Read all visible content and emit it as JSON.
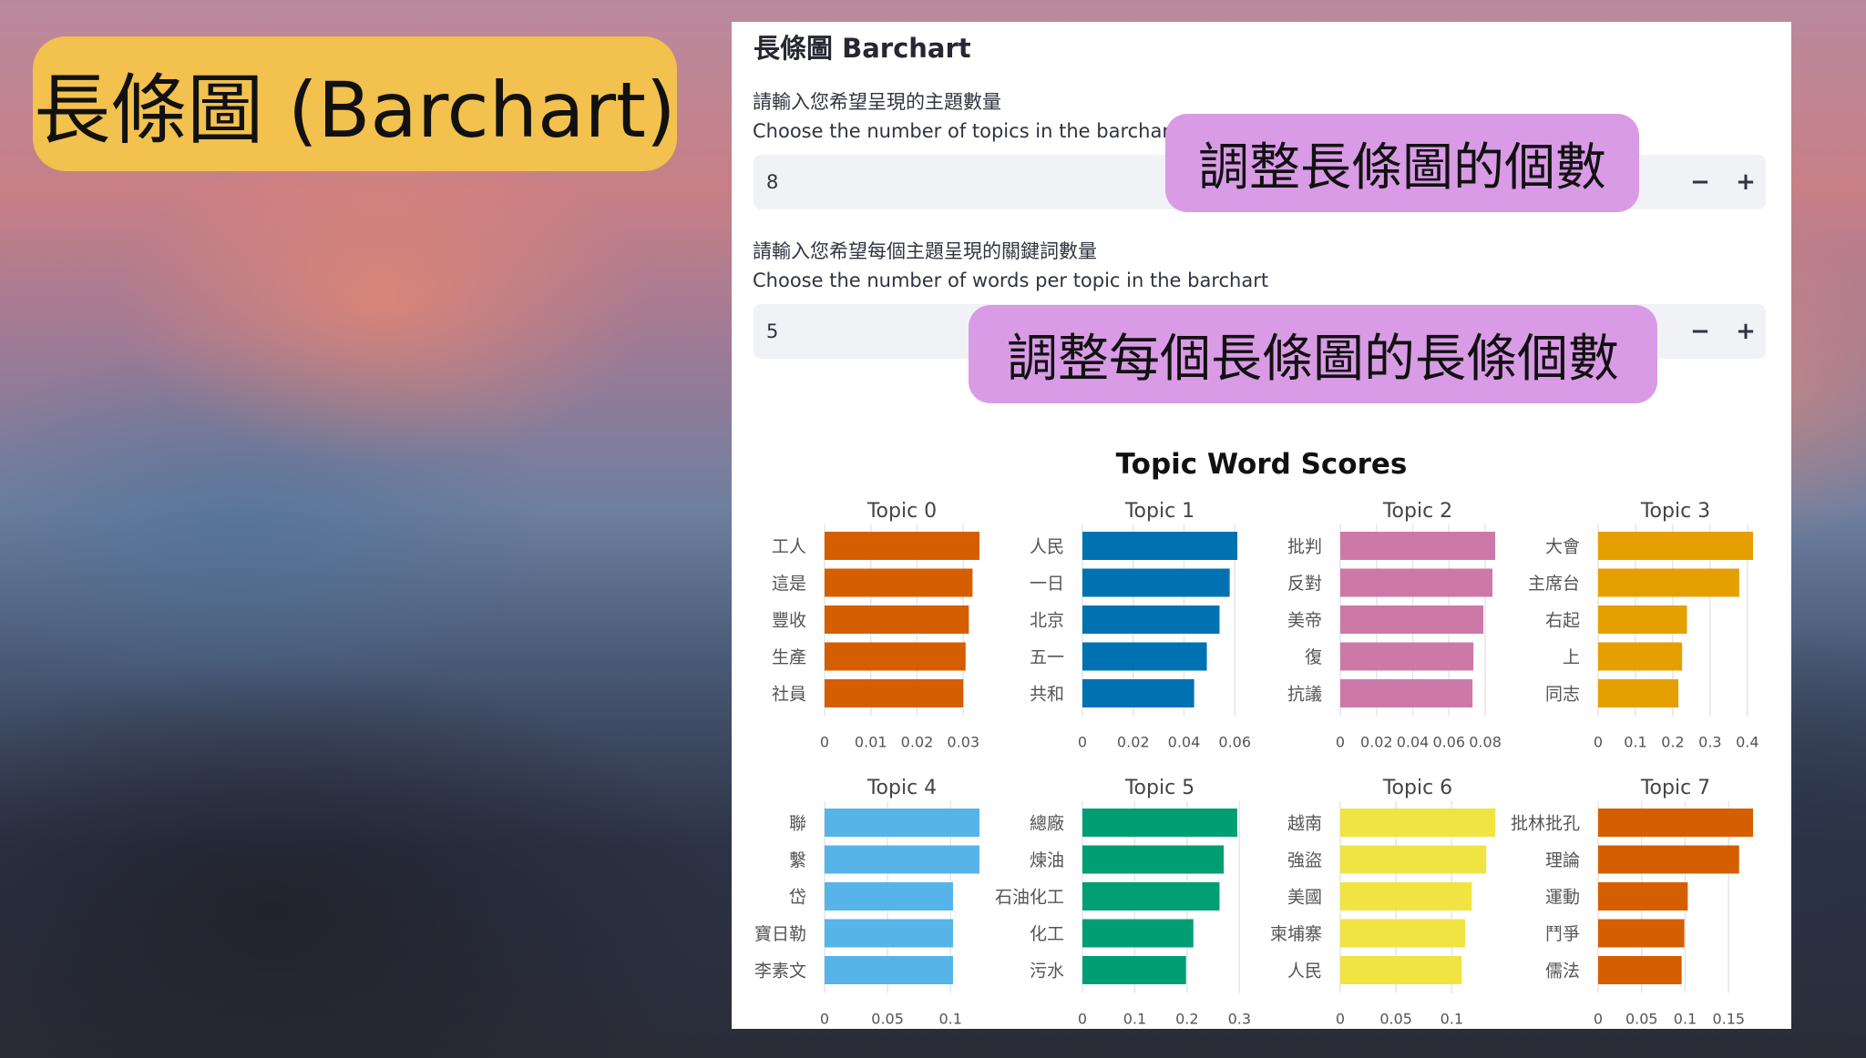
{
  "overlay": {
    "title": "長條圖 (Barchart)",
    "callout_topics": "調整長條圖的個數",
    "callout_words": "調整每個長條圖的長條個數"
  },
  "panel": {
    "title": "長條圖 Barchart",
    "topics_input": {
      "label_zh": "請輸入您希望呈現的主題數量",
      "label_en": "Choose the number of topics in the barchart",
      "value": "8",
      "minus": "−",
      "plus": "+"
    },
    "words_input": {
      "label_zh": "請輸入您希望每個主題呈現的關鍵詞數量",
      "label_en": "Choose the number of words per topic in the barchart",
      "value": "5",
      "minus": "−",
      "plus": "+"
    }
  },
  "chart_data": {
    "type": "bar",
    "title": "Topic Word Scores",
    "orientation": "horizontal",
    "grid": true,
    "subplots": [
      {
        "name": "Topic 0",
        "color": "#d55e00",
        "words": [
          "工人",
          "這是",
          "豐收",
          "生產",
          "社員"
        ],
        "values": [
          0.0335,
          0.032,
          0.0312,
          0.0305,
          0.03
        ],
        "xlim": [
          0,
          0.0335
        ],
        "ticks": [
          0,
          0.01,
          0.02,
          0.03
        ],
        "tick_labels": [
          "0",
          "0.01",
          "0.02",
          "0.03"
        ]
      },
      {
        "name": "Topic 1",
        "color": "#0072b2",
        "words": [
          "人民",
          "一日",
          "北京",
          "五一",
          "共和"
        ],
        "values": [
          0.061,
          0.058,
          0.054,
          0.049,
          0.044
        ],
        "xlim": [
          0,
          0.061
        ],
        "ticks": [
          0,
          0.02,
          0.04,
          0.06
        ],
        "tick_labels": [
          "0",
          "0.02",
          "0.04",
          "0.06"
        ]
      },
      {
        "name": "Topic 2",
        "color": "#cc79a7",
        "words": [
          "批判",
          "反對",
          "美帝",
          "復",
          "抗議"
        ],
        "values": [
          0.0855,
          0.084,
          0.079,
          0.0735,
          0.073
        ],
        "xlim": [
          0,
          0.0855
        ],
        "ticks": [
          0,
          0.02,
          0.04,
          0.06,
          0.08
        ],
        "tick_labels": [
          "0",
          "0.02",
          "0.04",
          "0.06",
          "0.08"
        ]
      },
      {
        "name": "Topic 3",
        "color": "#e69f00",
        "words": [
          "大會",
          "主席台",
          "右起",
          "上",
          "同志"
        ],
        "values": [
          0.415,
          0.378,
          0.238,
          0.225,
          0.215
        ],
        "xlim": [
          0,
          0.415
        ],
        "ticks": [
          0,
          0.1,
          0.2,
          0.3,
          0.4
        ],
        "tick_labels": [
          "0",
          "0.1",
          "0.2",
          "0.3",
          "0.4"
        ]
      },
      {
        "name": "Topic 4",
        "color": "#56b4e9",
        "words": [
          "聯",
          "繫",
          "岱",
          "寶日勒",
          "李素文"
        ],
        "values": [
          0.123,
          0.123,
          0.102,
          0.102,
          0.102
        ],
        "xlim": [
          0,
          0.123
        ],
        "ticks": [
          0,
          0.05,
          0.1
        ],
        "tick_labels": [
          "0",
          "0.05",
          "0.1"
        ]
      },
      {
        "name": "Topic 5",
        "color": "#009e73",
        "words": [
          "總廠",
          "煉油",
          "石油化工",
          "化工",
          "污水"
        ],
        "values": [
          0.296,
          0.27,
          0.262,
          0.212,
          0.198
        ],
        "xlim": [
          0,
          0.296
        ],
        "ticks": [
          0,
          0.1,
          0.2,
          0.3
        ],
        "tick_labels": [
          "0",
          "0.1",
          "0.2",
          "0.3"
        ]
      },
      {
        "name": "Topic 6",
        "color": "#f0e442",
        "words": [
          "越南",
          "強盜",
          "美國",
          "柬埔寨",
          "人民"
        ],
        "values": [
          0.139,
          0.131,
          0.118,
          0.112,
          0.109
        ],
        "xlim": [
          0,
          0.139
        ],
        "ticks": [
          0,
          0.05,
          0.1
        ],
        "tick_labels": [
          "0",
          "0.05",
          "0.1"
        ]
      },
      {
        "name": "Topic 7",
        "color": "#d55e00",
        "words": [
          "批林批孔",
          "理論",
          "運動",
          "鬥爭",
          "儒法"
        ],
        "values": [
          0.178,
          0.162,
          0.103,
          0.099,
          0.096
        ],
        "xlim": [
          0,
          0.178
        ],
        "ticks": [
          0,
          0.05,
          0.1,
          0.15
        ],
        "tick_labels": [
          "0",
          "0.05",
          "0.1",
          "0.15"
        ]
      }
    ]
  }
}
